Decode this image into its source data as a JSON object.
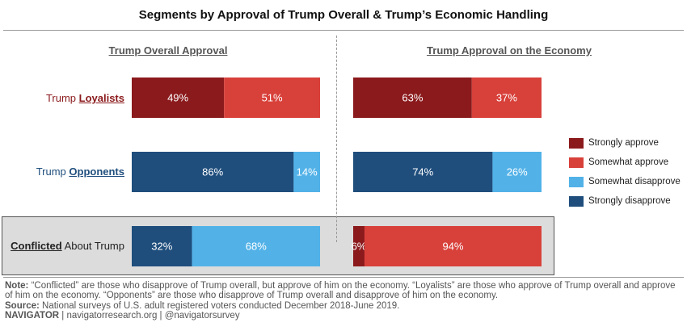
{
  "title": "Segments by Approval of Trump Overall & Trump’s Economic Handling",
  "panels": {
    "left_title": "Trump Overall Approval",
    "right_title": "Trump Approval on the Economy"
  },
  "rows": {
    "loyalists": {
      "prefix": "Trump ",
      "emphasis": "Loyalists",
      "suffix": ""
    },
    "opponents": {
      "prefix": "Trump ",
      "emphasis": "Opponents",
      "suffix": ""
    },
    "conflicted": {
      "prefix": "",
      "emphasis": "Conflicted",
      "suffix": " About Trump"
    }
  },
  "legend": [
    {
      "label": "Strongly approve",
      "color": "#8b1a1c"
    },
    {
      "label": "Somewhat approve",
      "color": "#d8403a"
    },
    {
      "label": "Somewhat disapprove",
      "color": "#52b2e8"
    },
    {
      "label": "Strongly disapprove",
      "color": "#1f4e7d"
    }
  ],
  "colors": {
    "strongly_approve": "#8b1a1c",
    "somewhat_approve": "#d8403a",
    "somewhat_disapprove": "#52b2e8",
    "strongly_disapprove": "#1f4e7d",
    "loyalists_label": "#8b1a1c",
    "opponents_label": "#1f4e7d",
    "conflicted_label": "#222222"
  },
  "chart_data": {
    "type": "bar",
    "orientation": "horizontal",
    "stacked": true,
    "xlim": [
      0,
      100
    ],
    "categories": [
      "Trump Loyalists",
      "Trump Opponents",
      "Conflicted About Trump"
    ],
    "panels": [
      {
        "title": "Trump Overall Approval",
        "rows": [
          {
            "category": "Trump Loyalists",
            "segments": [
              {
                "series": "Strongly approve",
                "value": 49,
                "label": "49%"
              },
              {
                "series": "Somewhat approve",
                "value": 51,
                "label": "51%"
              }
            ]
          },
          {
            "category": "Trump Opponents",
            "segments": [
              {
                "series": "Strongly disapprove",
                "value": 86,
                "label": "86%"
              },
              {
                "series": "Somewhat disapprove",
                "value": 14,
                "label": "14%"
              }
            ]
          },
          {
            "category": "Conflicted About Trump",
            "segments": [
              {
                "series": "Strongly disapprove",
                "value": 32,
                "label": "32%"
              },
              {
                "series": "Somewhat disapprove",
                "value": 68,
                "label": "68%"
              }
            ]
          }
        ]
      },
      {
        "title": "Trump Approval on the Economy",
        "rows": [
          {
            "category": "Trump Loyalists",
            "segments": [
              {
                "series": "Strongly approve",
                "value": 63,
                "label": "63%"
              },
              {
                "series": "Somewhat approve",
                "value": 37,
                "label": "37%"
              }
            ]
          },
          {
            "category": "Trump Opponents",
            "segments": [
              {
                "series": "Strongly disapprove",
                "value": 74,
                "label": "74%"
              },
              {
                "series": "Somewhat disapprove",
                "value": 26,
                "label": "26%"
              }
            ]
          },
          {
            "category": "Conflicted About Trump",
            "segments": [
              {
                "series": "Strongly approve",
                "value": 6,
                "label": "6%"
              },
              {
                "series": "Somewhat approve",
                "value": 94,
                "label": "94%"
              }
            ]
          }
        ]
      }
    ],
    "legend_position": "right"
  },
  "footer": {
    "note_label": "Note:",
    "note_text": " “Conflicted” are those who disapprove of Trump overall, but approve of him on the economy. “Loyalists” are those who approve of Trump overall and approve of him on the economy. “Opponents” are those who disapprove of Trump overall and disapprove of him on the economy.",
    "source_label": "Source:",
    "source_text": " National surveys of U.S. adult registered voters conducted December 2018-June 2019.",
    "brand": "NAVIGATOR",
    "links": " | navigatorresearch.org | @navigatorsurvey"
  }
}
